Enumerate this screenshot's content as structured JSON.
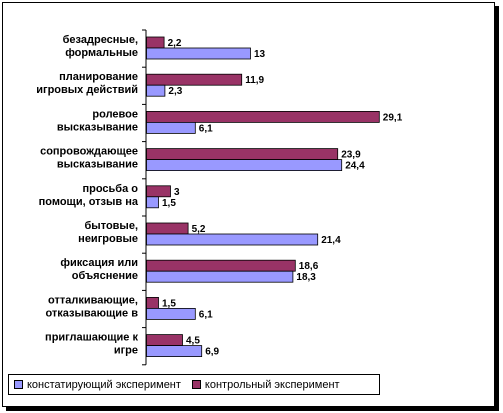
{
  "chart_data": {
    "type": "bar",
    "orientation": "horizontal",
    "categories": [
      [
        "безадресные,",
        "формальные"
      ],
      [
        "планирование",
        "игровых действий"
      ],
      [
        "ролевое",
        "высказывание"
      ],
      [
        "сопровождающее",
        "высказывание"
      ],
      [
        "просьба о",
        "помощи, отзыв на"
      ],
      [
        "бытовые,",
        "неигровые"
      ],
      [
        "фиксация или",
        "объяснение"
      ],
      [
        "отталкивающие,",
        "отказывающие в"
      ],
      [
        "приглашающие к",
        "игре"
      ]
    ],
    "series": [
      {
        "name": "констатирующий эксперимент",
        "color": "#9999ff",
        "values": [
          13,
          2.3,
          6.1,
          24.4,
          1.5,
          21.4,
          18.3,
          6.1,
          6.9
        ],
        "labels": [
          "13",
          "2,3",
          "6,1",
          "24,4",
          "1,5",
          "21,4",
          "18,3",
          "6,1",
          "6,9"
        ]
      },
      {
        "name": "контрольный эксперимент",
        "color": "#993366",
        "values": [
          2.2,
          11.9,
          29.1,
          23.9,
          3,
          5.2,
          18.6,
          1.5,
          4.5
        ],
        "labels": [
          "2,2",
          "11,9",
          "29,1",
          "23,9",
          "3",
          "5,2",
          "18,6",
          "1,5",
          "4,5"
        ]
      }
    ],
    "xlim": [
      0,
      30
    ],
    "grid": false,
    "legend_position": "bottom"
  }
}
